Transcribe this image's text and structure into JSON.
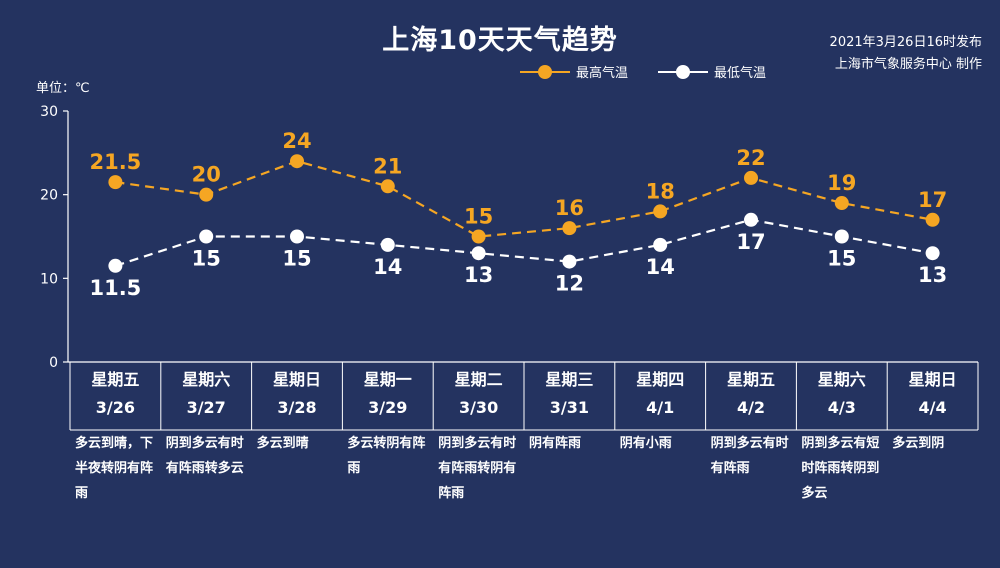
{
  "header": {
    "title": "上海10天天气趋势",
    "issued": "2021年3月26日16时发布",
    "producer": "上海市气象服务中心 制作",
    "unit": "单位：℃"
  },
  "legend": {
    "high_label": "最高气温",
    "low_label": "最低气温"
  },
  "colors": {
    "high": "#f5a623",
    "low": "#ffffff",
    "background": "#243360"
  },
  "chart_data": {
    "type": "line",
    "title": "上海10天天气趋势",
    "ylabel": "单位：℃",
    "ylim": [
      0,
      30
    ],
    "yticks": [
      0,
      10,
      20,
      30
    ],
    "categories": [
      "3/26",
      "3/27",
      "3/28",
      "3/29",
      "3/30",
      "3/31",
      "4/1",
      "4/2",
      "4/3",
      "4/4"
    ],
    "series": [
      {
        "name": "最高气温",
        "values": [
          21.5,
          20,
          24,
          21,
          15,
          16,
          18,
          22,
          19,
          17
        ]
      },
      {
        "name": "最低气温",
        "values": [
          11.5,
          15,
          15,
          14,
          13,
          12,
          14,
          17,
          15,
          13
        ]
      }
    ]
  },
  "days": [
    {
      "weekday": "星期五",
      "date": "3/26",
      "desc": "多云到晴，下半夜转阴有阵雨"
    },
    {
      "weekday": "星期六",
      "date": "3/27",
      "desc": "阴到多云有时有阵雨转多云"
    },
    {
      "weekday": "星期日",
      "date": "3/28",
      "desc": "多云到晴"
    },
    {
      "weekday": "星期一",
      "date": "3/29",
      "desc": "多云转阴有阵雨"
    },
    {
      "weekday": "星期二",
      "date": "3/30",
      "desc": "阴到多云有时有阵雨转阴有阵雨"
    },
    {
      "weekday": "星期三",
      "date": "3/31",
      "desc": "阴有阵雨"
    },
    {
      "weekday": "星期四",
      "date": "4/1",
      "desc": "阴有小雨"
    },
    {
      "weekday": "星期五",
      "date": "4/2",
      "desc": "阴到多云有时有阵雨"
    },
    {
      "weekday": "星期六",
      "date": "4/3",
      "desc": "阴到多云有短时阵雨转阴到多云"
    },
    {
      "weekday": "星期日",
      "date": "4/4",
      "desc": "多云到阴"
    }
  ]
}
